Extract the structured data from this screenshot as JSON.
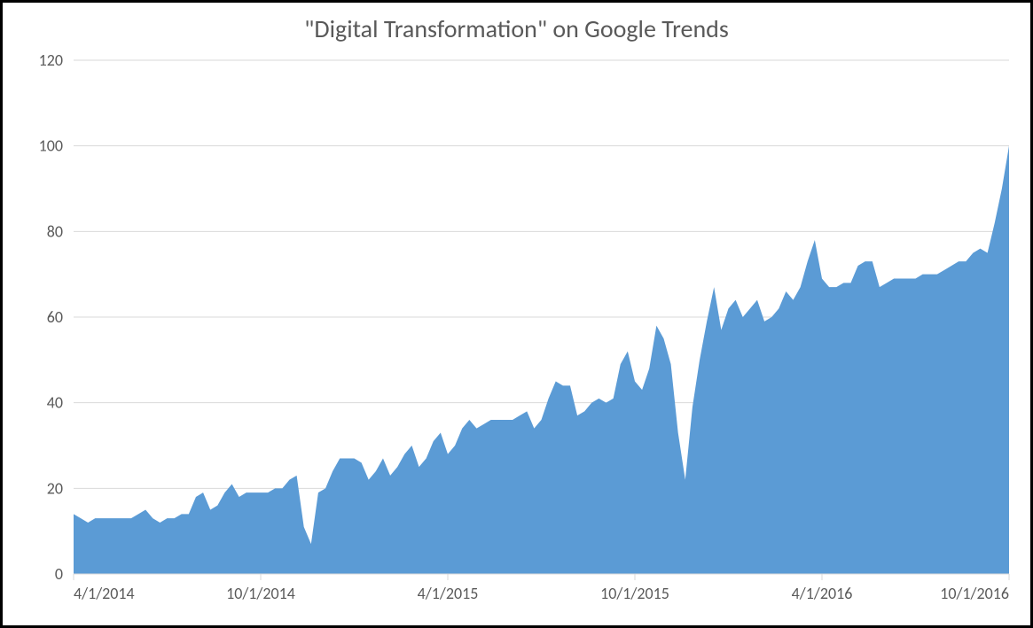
{
  "chart": {
    "type": "area",
    "title": "\"Digital Transformation\" on Google Trends",
    "title_fontsize": 28,
    "title_color": "#595959",
    "background_color": "#ffffff",
    "border_color": "#000000",
    "border_width": 3,
    "series_color": "#5b9bd5",
    "series_opacity": 1.0,
    "grid_color": "#d9d9d9",
    "axis_line_color": "#d9d9d9",
    "axis_label_color": "#595959",
    "axis_label_fontsize": 18,
    "y_axis": {
      "min": 0,
      "max": 120,
      "tick_step": 20,
      "ticks": [
        0,
        20,
        40,
        60,
        80,
        100,
        120
      ]
    },
    "x_axis": {
      "tick_labels": [
        "4/1/2014",
        "10/1/2014",
        "4/1/2015",
        "10/1/2015",
        "4/1/2016",
        "10/1/2016"
      ],
      "tick_positions": [
        0,
        0.2,
        0.4,
        0.6,
        0.8,
        1.0
      ]
    },
    "data": {
      "n_points": 131,
      "values": [
        14,
        13,
        12,
        13,
        13,
        13,
        13,
        13,
        13,
        14,
        15,
        13,
        12,
        13,
        13,
        14,
        14,
        18,
        19,
        15,
        16,
        19,
        21,
        18,
        19,
        19,
        19,
        19,
        20,
        20,
        22,
        23,
        11,
        7,
        19,
        20,
        24,
        27,
        27,
        27,
        26,
        22,
        24,
        27,
        23,
        25,
        28,
        30,
        25,
        27,
        31,
        33,
        28,
        30,
        34,
        36,
        34,
        35,
        36,
        36,
        36,
        36,
        37,
        38,
        34,
        36,
        41,
        45,
        44,
        44,
        37,
        38,
        40,
        41,
        40,
        41,
        49,
        52,
        45,
        43,
        48,
        58,
        55,
        49,
        33,
        22,
        39,
        50,
        59,
        67,
        57,
        62,
        64,
        60,
        62,
        64,
        59,
        60,
        62,
        66,
        64,
        67,
        73,
        78,
        69,
        67,
        67,
        68,
        68,
        72,
        73,
        73,
        67,
        68,
        69,
        69,
        69,
        69,
        70,
        70,
        70,
        71,
        72,
        73,
        73,
        75,
        76,
        75,
        82,
        90,
        100
      ]
    }
  }
}
